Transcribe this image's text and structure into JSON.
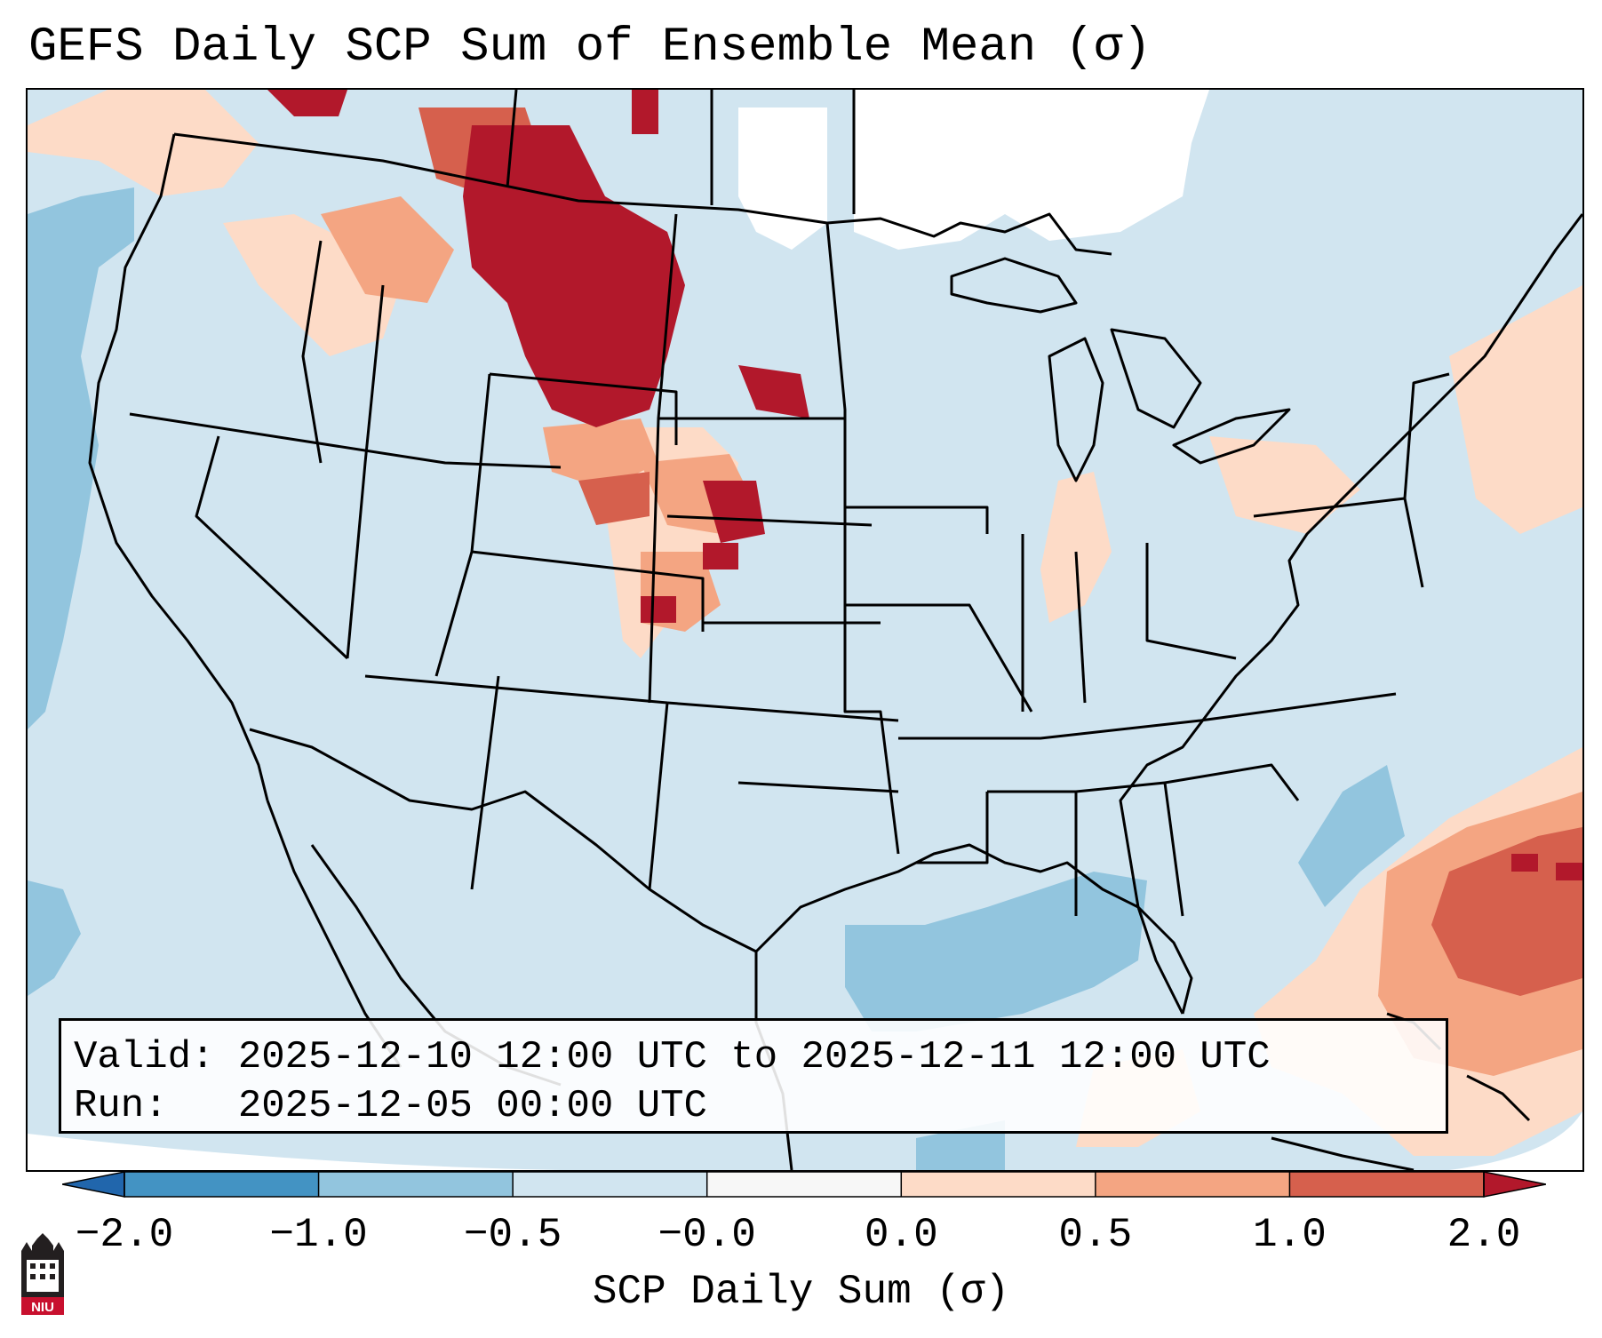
{
  "title": "GEFS Daily SCP Sum of Ensemble Mean (σ)",
  "map": {
    "region": "Contiguous United States",
    "base_color": "#d1e5f0",
    "fill_colors": {
      "lt_-2.0": "#2166ac",
      "-2.0_to_-1.0": "#4393c3",
      "-1.0_to_-0.5": "#92c5de",
      "-0.5_to_-0.0": "#d1e5f0",
      "-0.0_to_0.0": "#f7f7f7",
      "0.0_to_0.5": "#fddbc7",
      "0.5_to_1.0": "#f4a582",
      "1.0_to_2.0": "#d6604d",
      "gt_2.0": "#b2182b"
    },
    "no_data_color": "#ffffff",
    "border_color": "#000000"
  },
  "info": {
    "valid_label": "Valid:",
    "valid_value": "2025-12-10 12:00 UTC to 2025-12-11 12:00 UTC",
    "run_label": "Run:",
    "run_value": "2025-12-05 00:00 UTC"
  },
  "colorbar": {
    "label": "SCP Daily Sum (σ)",
    "ticks": [
      "−2.0",
      "−1.0",
      "−0.5",
      "−0.0",
      "0.0",
      "0.5",
      "1.0",
      "2.0"
    ],
    "bins": [
      {
        "range": "lt_-2.0",
        "color": "#2166ac"
      },
      {
        "range": "-2.0_to_-1.0",
        "color": "#4393c3"
      },
      {
        "range": "-1.0_to_-0.5",
        "color": "#92c5de"
      },
      {
        "range": "-0.5_to_-0.0",
        "color": "#d1e5f0"
      },
      {
        "range": "-0.0_to_0.0",
        "color": "#f7f7f7"
      },
      {
        "range": "0.0_to_0.5",
        "color": "#fddbc7"
      },
      {
        "range": "0.5_to_1.0",
        "color": "#f4a582"
      },
      {
        "range": "1.0_to_2.0",
        "color": "#d6604d"
      },
      {
        "range": "gt_2.0",
        "color": "#b2182b"
      }
    ]
  },
  "logo": {
    "text": "NIU",
    "icon": "niu-logo-icon"
  }
}
